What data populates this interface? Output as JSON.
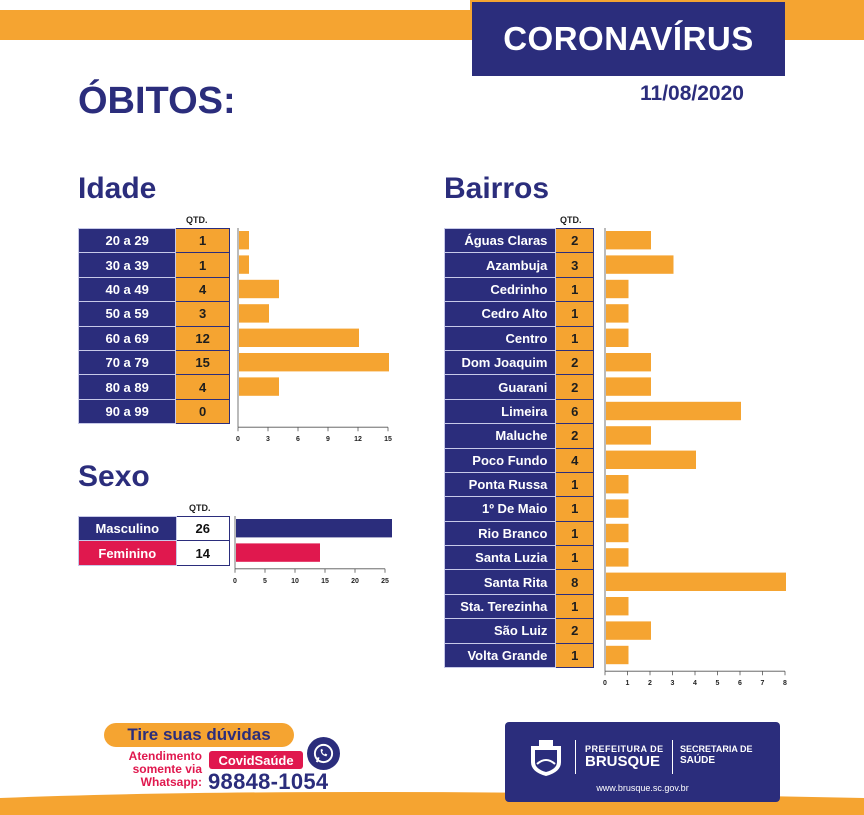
{
  "header": {
    "title": "CORONAVÍRUS",
    "date": "11/08/2020",
    "heading": "ÓBITOS:"
  },
  "colors": {
    "navy": "#2b2d7c",
    "orange": "#f5a431",
    "pink": "#e0184e"
  },
  "qtd_label": "QTD.",
  "chart_data": [
    {
      "type": "bar",
      "title": "Idade",
      "categories": [
        "20 a 29",
        "30 a 39",
        "40 a 49",
        "50 a 59",
        "60 a 69",
        "70 a 79",
        "80 a 89",
        "90 a 99"
      ],
      "values": [
        1,
        1,
        4,
        3,
        12,
        15,
        4,
        0
      ],
      "xticks": [
        "0",
        "3",
        "6",
        "9",
        "12",
        "15"
      ],
      "xlim": [
        0,
        15
      ]
    },
    {
      "type": "bar",
      "title": "Sexo",
      "categories": [
        "Masculino",
        "Feminino"
      ],
      "values": [
        26,
        14
      ],
      "xticks": [
        "0",
        "5",
        "10",
        "15",
        "20",
        "25"
      ],
      "xlim": [
        0,
        25
      ]
    },
    {
      "type": "bar",
      "title": "Bairros",
      "categories": [
        "Águas Claras",
        "Azambuja",
        "Cedrinho",
        "Cedro Alto",
        "Centro",
        "Dom Joaquim",
        "Guarani",
        "Limeira",
        "Maluche",
        "Poco Fundo",
        "Ponta Russa",
        "1º De Maio",
        "Rio Branco",
        "Santa Luzia",
        "Santa Rita",
        "Sta. Terezinha",
        "São Luiz",
        "Volta Grande"
      ],
      "values": [
        2,
        3,
        1,
        1,
        1,
        2,
        2,
        6,
        2,
        4,
        1,
        1,
        1,
        1,
        8,
        1,
        2,
        1
      ],
      "xticks": [
        "0",
        "1",
        "2",
        "3",
        "4",
        "5",
        "6",
        "7",
        "8"
      ],
      "xlim": [
        0,
        8
      ]
    }
  ],
  "footer": {
    "cta": "Tire suas dúvidas",
    "attend_line1": "Atendimento",
    "attend_line2": "somente via",
    "attend_line3": "Whatsapp:",
    "badge": "CovidSaúde",
    "phone": "98848-1054",
    "pref_top": "PREFEITURA DE",
    "pref_bottom": "BRUSQUE",
    "sec_top": "SECRETARIA DE",
    "sec_bottom": "SAÚDE",
    "url": "www.brusque.sc.gov.br",
    "whatsapp_icon": "whatsapp-icon",
    "crest_icon": "brusque-crest-icon"
  }
}
